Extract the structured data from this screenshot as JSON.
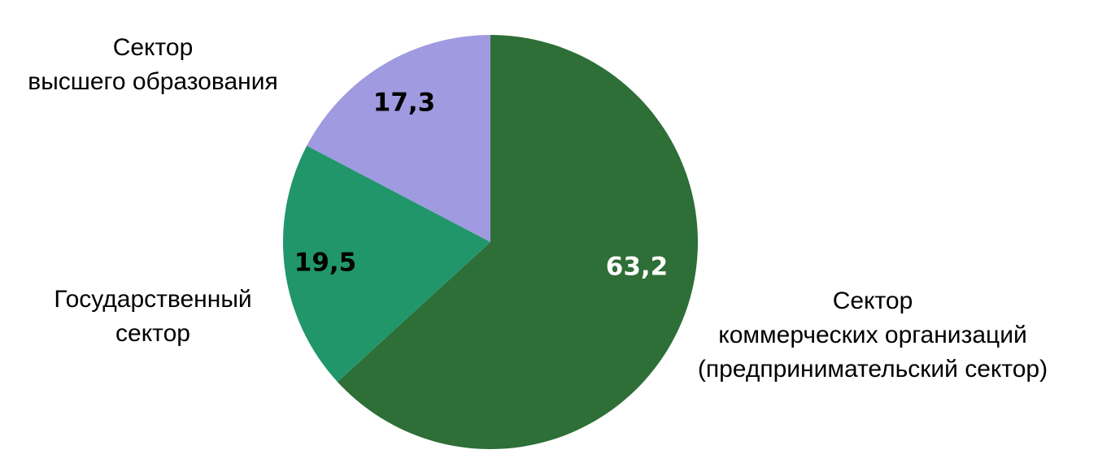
{
  "chart_data": {
    "type": "pie",
    "categories": [
      "Сектор\nкоммерческих организаций\n(предпринимательский сектор)",
      "Государственный\nсектор",
      "Сектор\nвысшего образования"
    ],
    "values": [
      63.2,
      19.5,
      17.3
    ],
    "value_labels": [
      "63,2",
      "19,5",
      "17,3"
    ],
    "colors": [
      "#2e6e37",
      "#21966b",
      "#a09ae0"
    ]
  }
}
